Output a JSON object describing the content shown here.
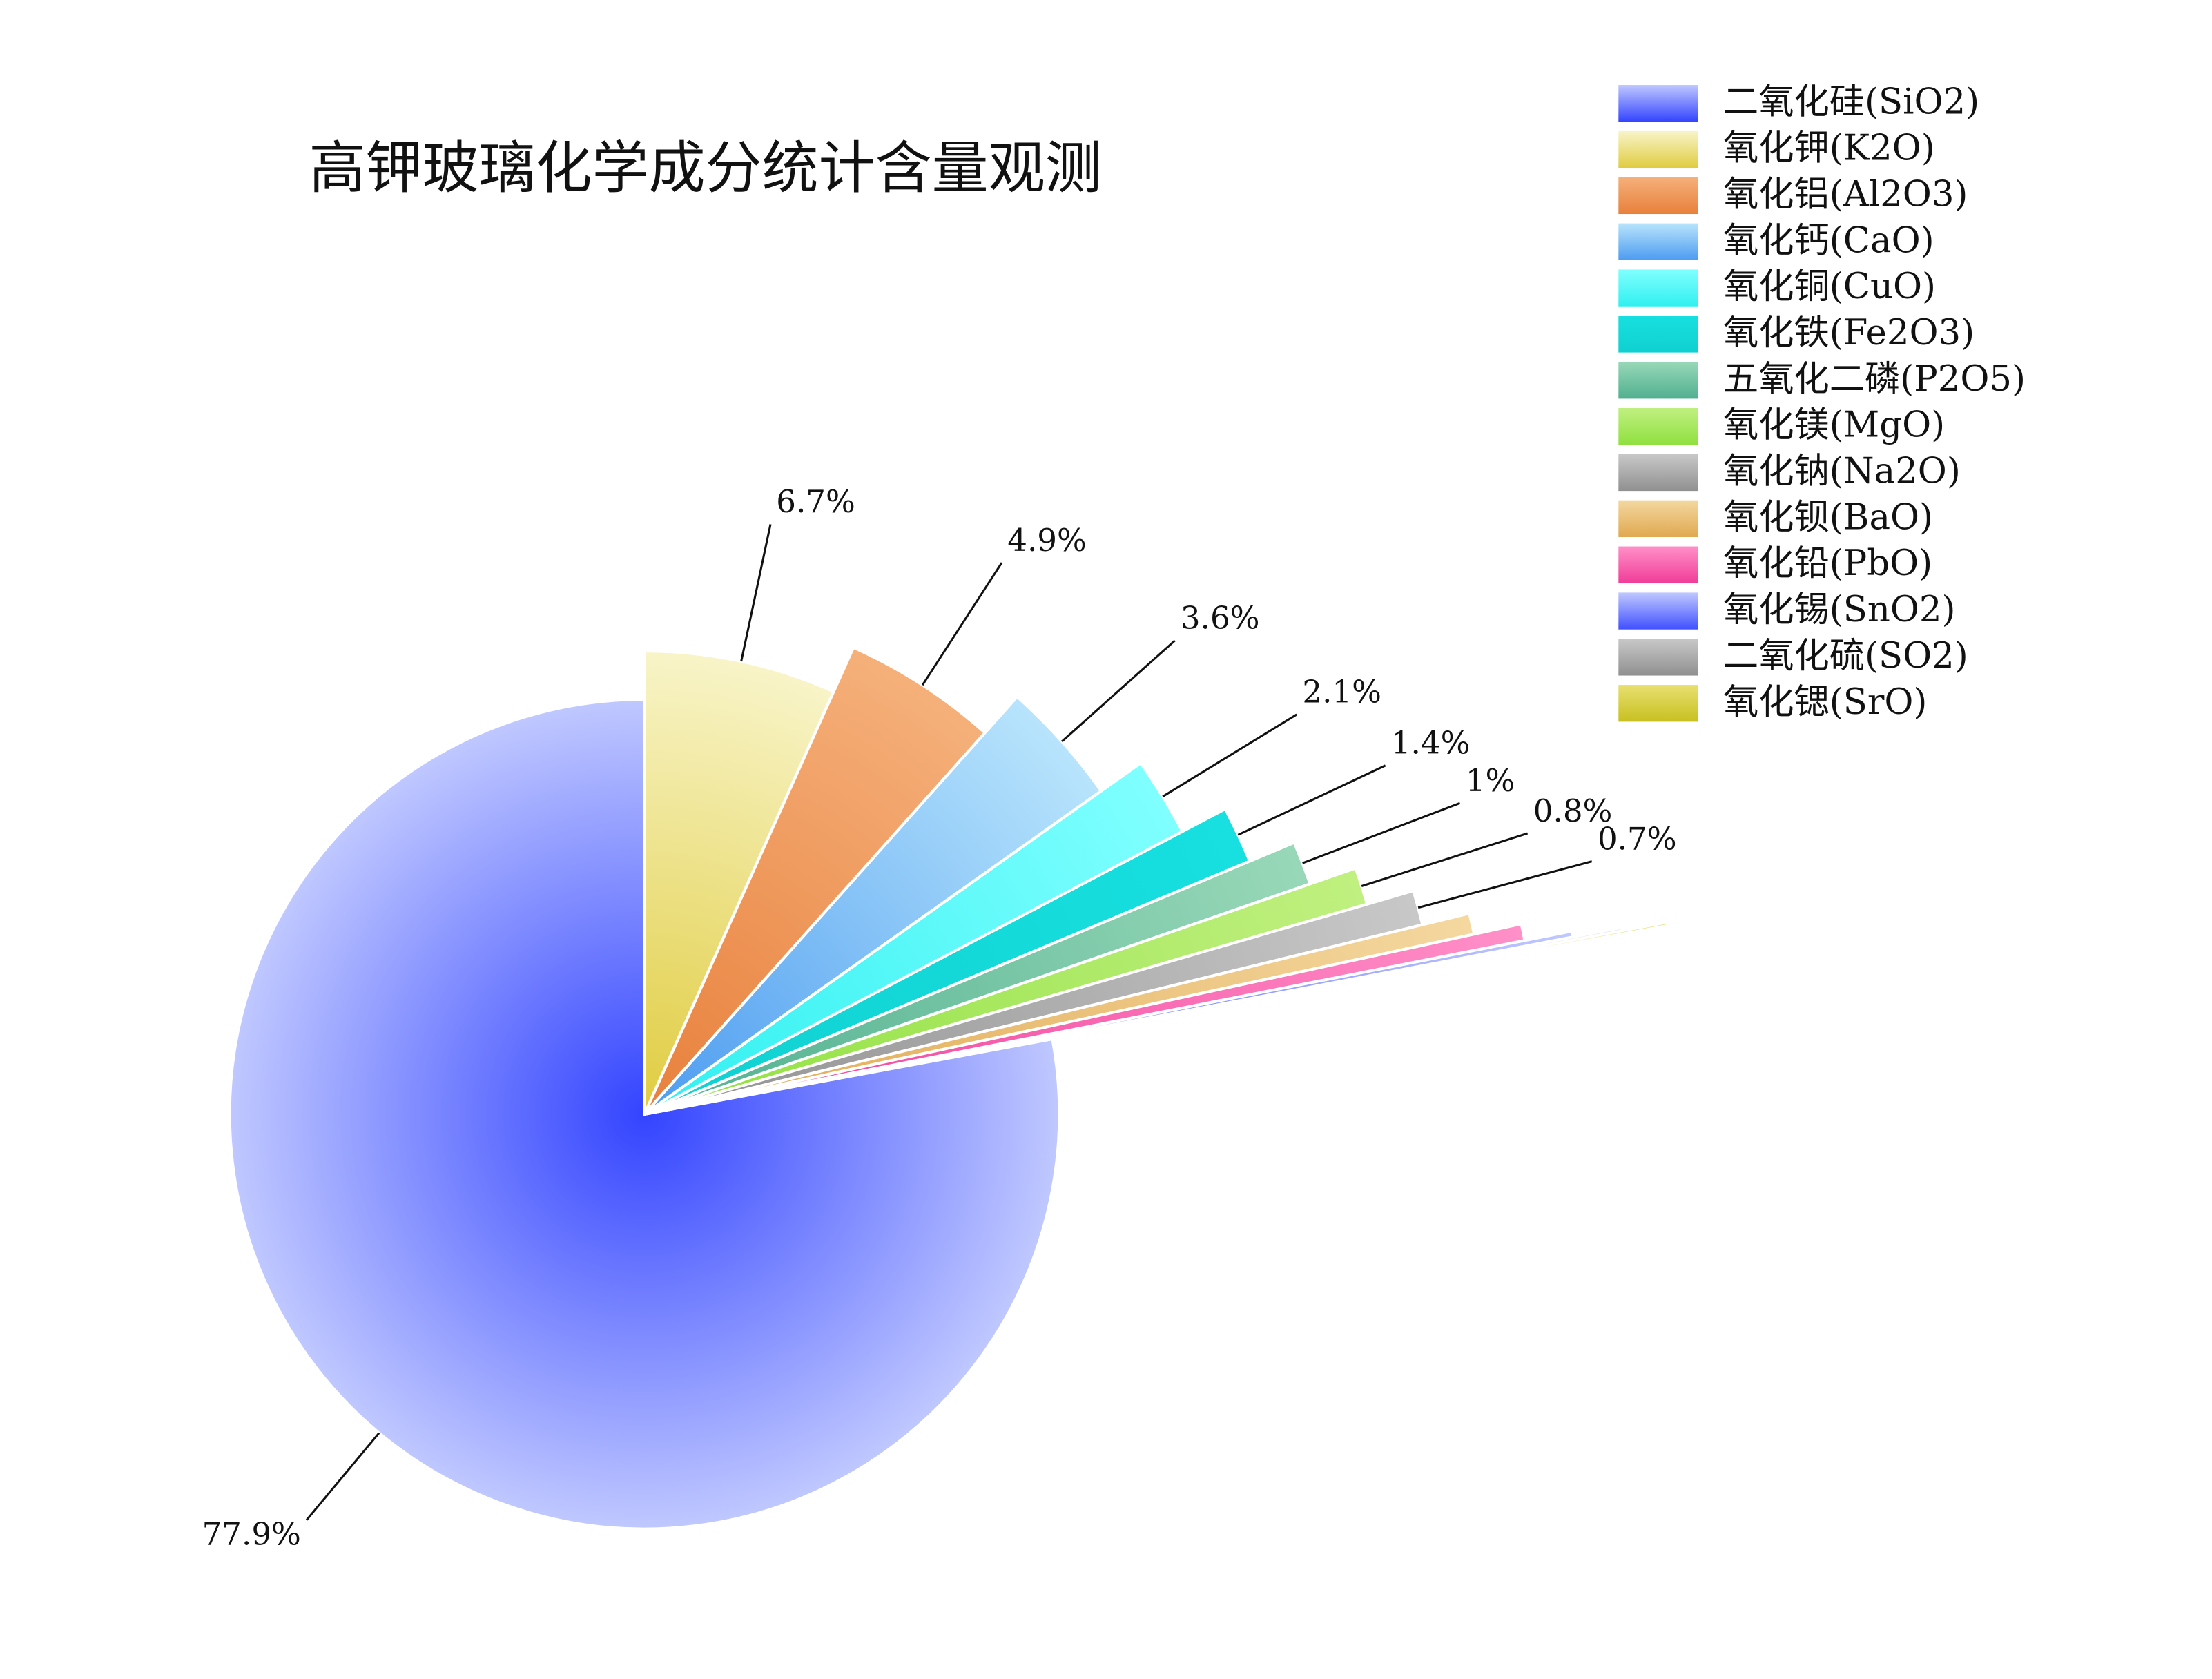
{
  "chart_data": {
    "type": "rose",
    "title": "高钾玻璃化学成分统计含量观测",
    "categories": [
      "二氧化硅(SiO2)",
      "氧化钾(K2O)",
      "氧化铝(Al2O3)",
      "氧化钙(CaO)",
      "氧化铜(CuO)",
      "氧化铁(Fe2O3)",
      "五氧化二磷(P2O5)",
      "氧化镁(MgO)",
      "氧化钠(Na2O)",
      "氧化钡(BaO)",
      "氧化铅(PbO)",
      "氧化锡(SnO2)",
      "二氧化硫(SO2)",
      "氧化锶(SrO)"
    ],
    "values": [
      77.9,
      6.7,
      4.9,
      3.6,
      2.1,
      1.4,
      1,
      0.8,
      0.7,
      0.4,
      0.3,
      0.1,
      0.05,
      0.05
    ],
    "value_labels": [
      "77.9%",
      "6.7%",
      "4.9%",
      "3.6%",
      "2.1%",
      "1.4%",
      "1%",
      "0.8%",
      "0.7%",
      null,
      null,
      null,
      null,
      null
    ],
    "colors": [
      "#3344ff",
      "#e0cc40",
      "#e8803c",
      "#4c9cf0",
      "#30f0f0",
      "#10d0d0",
      "#50b090",
      "#90e040",
      "#909090",
      "#e0a850",
      "#f03c98",
      "#4050ff",
      "#909090",
      "#c8c020"
    ],
    "light_colors": [
      "#c0c8ff",
      "#f8f4c8",
      "#f5b07a",
      "#b8e4fc",
      "#80ffff",
      "#18e0e0",
      "#98d8b8",
      "#c0f080",
      "#c8c8c8",
      "#f4d8a0",
      "#ff90c8",
      "#c0c8ff",
      "#c8c8c8",
      "#e8e070"
    ],
    "legend": "top-right"
  }
}
